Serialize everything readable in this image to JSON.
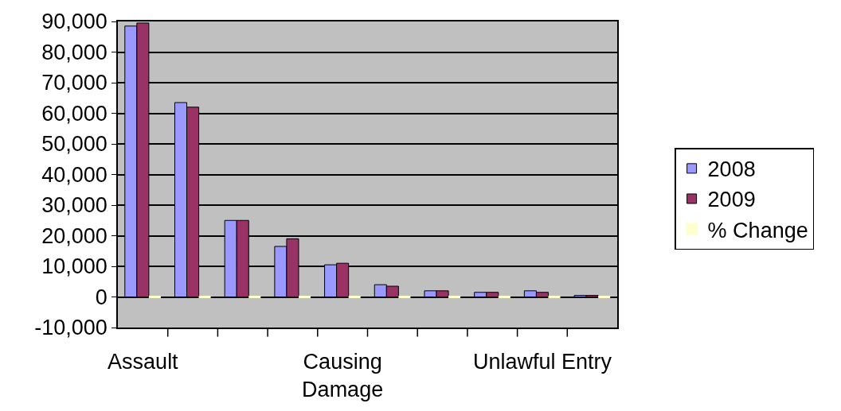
{
  "chart_data": {
    "type": "bar",
    "categories": [
      "Assault",
      null,
      null,
      null,
      "Causing\nDamage",
      null,
      null,
      null,
      "Unlawful Entry",
      null
    ],
    "series": [
      {
        "name": "2008",
        "color": "#9999ff",
        "values": [
          88500,
          63500,
          25000,
          16500,
          10500,
          4000,
          2000,
          1500,
          2000,
          500
        ]
      },
      {
        "name": "2009",
        "color": "#993366",
        "values": [
          89500,
          62000,
          25000,
          19000,
          11000,
          3500,
          2000,
          1500,
          1500,
          500
        ]
      },
      {
        "name": "% Change",
        "color": "#ffffcc",
        "values": [
          0,
          0,
          0,
          0,
          0,
          0,
          0,
          0,
          0,
          0
        ]
      }
    ],
    "ylim": [
      -10000,
      90000
    ],
    "yticks": [
      {
        "value": -10000,
        "label": "-10,000"
      },
      0,
      {
        "value": 10000,
        "label": "10,000"
      },
      {
        "value": 20000,
        "label": "20,000"
      },
      {
        "value": 30000,
        "label": "30,000"
      },
      {
        "value": 40000,
        "label": "40,000"
      },
      {
        "value": 50000,
        "label": "50,000"
      },
      {
        "value": 60000,
        "label": "60,000"
      },
      {
        "value": 70000,
        "label": "70,000"
      },
      {
        "value": 80000,
        "label": "80,000"
      },
      {
        "value": 90000,
        "label": "90,000"
      }
    ],
    "grid": "y",
    "legend": "right"
  }
}
